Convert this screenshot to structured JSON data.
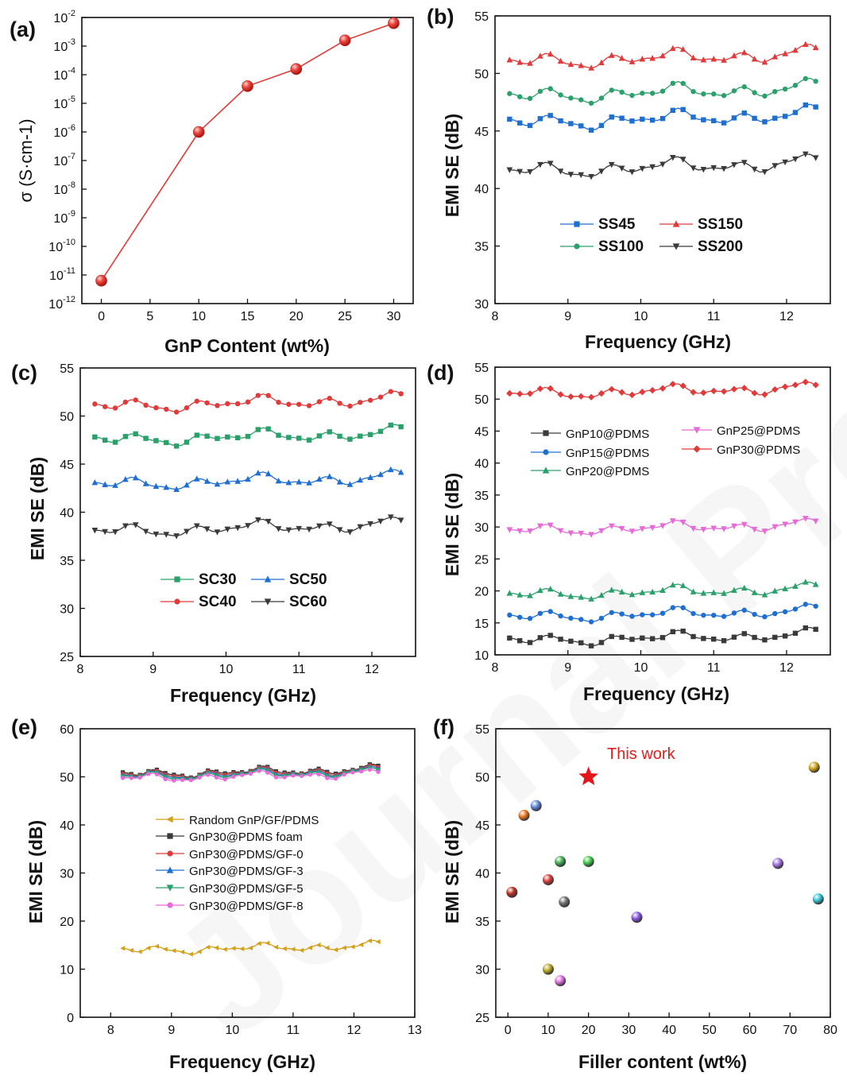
{
  "watermark": "Journal Pre-proof",
  "chart_data": [
    {
      "id": "a",
      "letter": "(a)",
      "type": "line",
      "title": "",
      "xlabel": "GnP Content (wt%)",
      "ylabel": "σ (S·cm-1)",
      "yscale": "log",
      "xlim": [
        -2,
        32
      ],
      "ylim": [
        -12,
        -2
      ],
      "xticks": [
        0,
        5,
        10,
        15,
        20,
        25,
        30
      ],
      "yticks": [
        -12,
        -11,
        -10,
        -9,
        -8,
        -7,
        -6,
        -5,
        -4,
        -3,
        -2
      ],
      "ytick_labels": [
        "10-12",
        "10-11",
        "10-10",
        "10-9",
        "10-8",
        "10-7",
        "10-6",
        "10-5",
        "10-4",
        "10-3",
        "10-2"
      ],
      "series": [
        {
          "name": "σ",
          "color": "#e23a36",
          "marker": "sphere",
          "x": [
            0,
            10,
            15,
            20,
            25,
            30
          ],
          "y": [
            -11.2,
            -6.0,
            -4.4,
            -3.8,
            -2.8,
            -2.2
          ]
        }
      ]
    },
    {
      "id": "b",
      "letter": "(b)",
      "type": "line",
      "xlabel": "Frequency (GHz)",
      "ylabel": "EMI SE (dB)",
      "xlim": [
        8,
        12.6
      ],
      "ylim": [
        30,
        55
      ],
      "xticks": [
        8,
        9,
        10,
        11,
        12
      ],
      "yticks": [
        30,
        35,
        40,
        45,
        50,
        55
      ],
      "series": [
        {
          "name": "SS45",
          "base": 46,
          "color": "#1f6fd1",
          "marker": "square"
        },
        {
          "name": "SS100",
          "base": 48.3,
          "color": "#2aa06b",
          "marker": "circle"
        },
        {
          "name": "SS150",
          "base": 51.3,
          "color": "#e03a3a",
          "marker": "triangle-up"
        },
        {
          "name": "SS200",
          "base": 41.8,
          "color": "#3a3a3a",
          "marker": "triangle-down"
        }
      ],
      "legend": [
        {
          "label": "SS45",
          "s": 0
        },
        {
          "label": "SS150",
          "s": 2
        },
        {
          "label": "SS100",
          "s": 1
        },
        {
          "label": "SS200",
          "s": 3
        }
      ]
    },
    {
      "id": "c",
      "letter": "(c)",
      "type": "line",
      "xlabel": "Frequency (GHz)",
      "ylabel": "EMI SE (dB)",
      "xlim": [
        8,
        12.6
      ],
      "ylim": [
        25,
        55
      ],
      "xticks": [
        8,
        9,
        10,
        11,
        12
      ],
      "yticks": [
        25,
        30,
        35,
        40,
        45,
        50,
        55
      ],
      "series": [
        {
          "name": "SC30",
          "base": 47.8,
          "color": "#2aa06b",
          "marker": "square"
        },
        {
          "name": "SC40",
          "base": 51.3,
          "color": "#e03a3a",
          "marker": "circle"
        },
        {
          "name": "SC50",
          "base": 43.2,
          "color": "#1f6fd1",
          "marker": "triangle-up"
        },
        {
          "name": "SC60",
          "base": 38.3,
          "color": "#3a3a3a",
          "marker": "triangle-down"
        }
      ],
      "legend": [
        {
          "label": "SC30",
          "s": 0
        },
        {
          "label": "SC50",
          "s": 2
        },
        {
          "label": "SC40",
          "s": 1
        },
        {
          "label": "SC60",
          "s": 3
        }
      ]
    },
    {
      "id": "d",
      "letter": "(d)",
      "type": "line",
      "xlabel": "Frequency (GHz)",
      "ylabel": "EMI SE (dB)",
      "xlim": [
        8,
        12.6
      ],
      "ylim": [
        10,
        55
      ],
      "xticks": [
        8,
        9,
        10,
        11,
        12
      ],
      "yticks": [
        10,
        15,
        20,
        25,
        30,
        35,
        40,
        45,
        50,
        55
      ],
      "series": [
        {
          "name": "GnP10@PDMS",
          "base": 12.6,
          "color": "#3a3a3a",
          "marker": "square"
        },
        {
          "name": "GnP15@PDMS",
          "base": 16.3,
          "color": "#1f6fd1",
          "marker": "circle"
        },
        {
          "name": "GnP20@PDMS",
          "base": 19.8,
          "color": "#2aa06b",
          "marker": "triangle-up"
        },
        {
          "name": "GnP25@PDMS",
          "base": 29.8,
          "color": "#e66ad8",
          "marker": "triangle-down"
        },
        {
          "name": "GnP30@PDMS",
          "base": 51.2,
          "color": "#e03a3a",
          "marker": "diamond"
        }
      ],
      "legend": [
        {
          "label": "GnP10@PDMS",
          "s": 0
        },
        {
          "label": "GnP25@PDMS",
          "s": 3
        },
        {
          "label": "GnP15@PDMS",
          "s": 1
        },
        {
          "label": "GnP30@PDMS",
          "s": 4
        },
        {
          "label": "GnP20@PDMS",
          "s": 2
        }
      ]
    },
    {
      "id": "e",
      "letter": "(e)",
      "type": "line",
      "xlabel": "Frequency (GHz)",
      "ylabel": "EMI SE (dB)",
      "xlim": [
        7.5,
        13
      ],
      "ylim": [
        0,
        60
      ],
      "xticks": [
        8,
        9,
        10,
        11,
        12,
        13
      ],
      "yticks": [
        0,
        10,
        20,
        30,
        40,
        50,
        60
      ],
      "series": [
        {
          "name": "Random GnP/GF/PDMS",
          "base": 14.3,
          "color": "#d4a017",
          "marker": "triangle-left"
        },
        {
          "name": "GnP30@PDMS foam",
          "base": 51.0,
          "color": "#3a3a3a",
          "marker": "square"
        },
        {
          "name": "GnP30@PDMS/GF-0",
          "base": 50.8,
          "color": "#e03a3a",
          "marker": "circle"
        },
        {
          "name": "GnP30@PDMS/GF-3",
          "base": 50.6,
          "color": "#1f6fd1",
          "marker": "triangle-up"
        },
        {
          "name": "GnP30@PDMS/GF-5",
          "base": 50.4,
          "color": "#2aa06b",
          "marker": "triangle-down"
        },
        {
          "name": "GnP30@PDMS/GF-8",
          "base": 50.1,
          "color": "#e66ad8",
          "marker": "circle"
        }
      ],
      "legend": [
        {
          "label": "Random GnP/GF/PDMS",
          "s": 0
        },
        {
          "label": "GnP30@PDMS foam",
          "s": 1
        },
        {
          "label": "GnP30@PDMS/GF-0",
          "s": 2
        },
        {
          "label": "GnP30@PDMS/GF-3",
          "s": 3
        },
        {
          "label": "GnP30@PDMS/GF-5",
          "s": 4
        },
        {
          "label": "GnP30@PDMS/GF-8",
          "s": 5
        }
      ]
    },
    {
      "id": "f",
      "letter": "(f)",
      "type": "scatter",
      "xlabel": "Filler content (wt%)",
      "ylabel": "EMI SE (dB)",
      "xlim": [
        -3,
        80
      ],
      "ylim": [
        25,
        55
      ],
      "xticks": [
        0,
        10,
        20,
        30,
        40,
        50,
        60,
        70,
        80
      ],
      "yticks": [
        25,
        30,
        35,
        40,
        45,
        50,
        55
      ],
      "annotation": "This work",
      "star": {
        "x": 20,
        "y": 50,
        "color": "#e8141c"
      },
      "points": [
        {
          "x": 1,
          "y": 38,
          "color": "#b82e1f"
        },
        {
          "x": 4,
          "y": 46,
          "color": "#e8731c"
        },
        {
          "x": 7,
          "y": 47,
          "color": "#5f86d8"
        },
        {
          "x": 10,
          "y": 39.3,
          "color": "#d93a3a"
        },
        {
          "x": 10,
          "y": 30,
          "color": "#b8a822"
        },
        {
          "x": 13,
          "y": 41.2,
          "color": "#3fae4f"
        },
        {
          "x": 13,
          "y": 28.8,
          "color": "#de6ee0"
        },
        {
          "x": 14,
          "y": 37,
          "color": "#6d6d6d"
        },
        {
          "x": 20,
          "y": 41.2,
          "color": "#44c94a"
        },
        {
          "x": 32,
          "y": 35.4,
          "color": "#8a55e0"
        },
        {
          "x": 67,
          "y": 41,
          "color": "#a070de"
        },
        {
          "x": 76,
          "y": 51,
          "color": "#cfa61c"
        },
        {
          "x": 77,
          "y": 37.3,
          "color": "#33c4d6"
        }
      ]
    }
  ]
}
